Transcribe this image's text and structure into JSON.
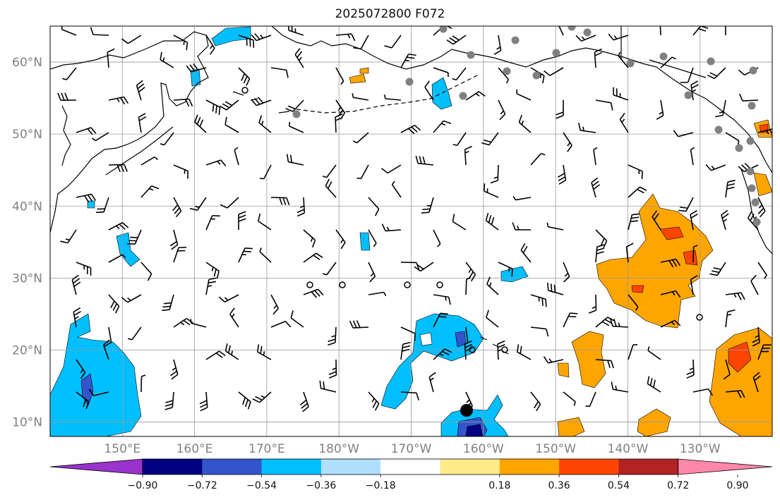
{
  "title": "2025072800 F072",
  "map": {
    "lon_range": [
      140,
      240
    ],
    "lat_range": [
      8,
      65
    ],
    "lat_ticks": [
      {
        "value": 10,
        "label": "10°N"
      },
      {
        "value": 20,
        "label": "20°N"
      },
      {
        "value": 30,
        "label": "30°N"
      },
      {
        "value": 40,
        "label": "40°N"
      },
      {
        "value": 50,
        "label": "50°N"
      },
      {
        "value": 60,
        "label": "60°N"
      }
    ],
    "lon_ticks": [
      {
        "value": 150,
        "label": "150°E"
      },
      {
        "value": 160,
        "label": "160°E"
      },
      {
        "value": 170,
        "label": "170°E"
      },
      {
        "value": 180,
        "label": "180°W"
      },
      {
        "value": 190,
        "label": "170°W"
      },
      {
        "value": 200,
        "label": "160°W"
      },
      {
        "value": 210,
        "label": "150°W"
      },
      {
        "value": 220,
        "label": "140°W"
      },
      {
        "value": 230,
        "label": "130°W"
      }
    ],
    "grid": true
  },
  "colorbar": {
    "levels": [
      "−0.90",
      "−0.72",
      "−0.54",
      "−0.36",
      "−0.18",
      "0.18",
      "0.36",
      "0.54",
      "0.72",
      "0.90"
    ],
    "colors": [
      "#9933cc",
      "#000080",
      "#3355cc",
      "#00bfff",
      "#afdfff",
      "#ffffff",
      "#ffeb88",
      "#ffa500",
      "#ff4500",
      "#b22222",
      "#ff88aa"
    ],
    "extend": "both"
  },
  "colors": {
    "deep_blue": "#000080",
    "mid_blue": "#3355cc",
    "cyan": "#00bfff",
    "light_blue": "#afdfff",
    "orange": "#ffa500",
    "red_orange": "#ff4500",
    "coastline": "#000000",
    "station": "#808080"
  },
  "station_icon": "gray-dot-station-marker",
  "storm_icon": "black-dot-storm-center"
}
